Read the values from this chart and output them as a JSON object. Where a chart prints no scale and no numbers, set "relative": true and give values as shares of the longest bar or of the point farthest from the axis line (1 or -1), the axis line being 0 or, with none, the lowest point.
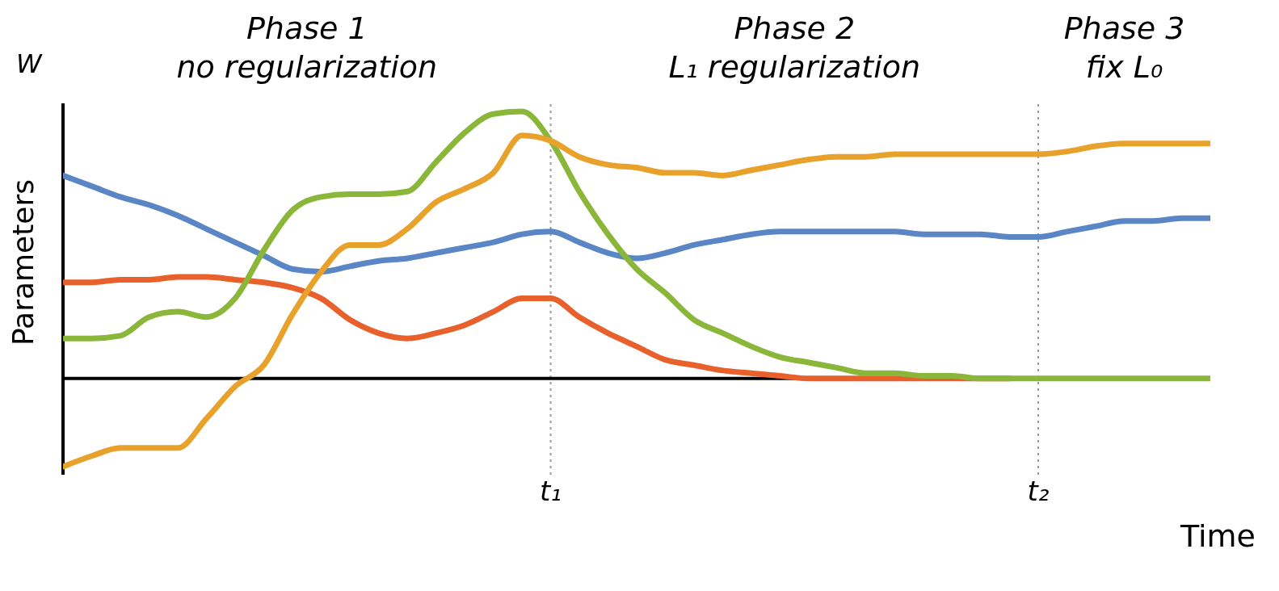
{
  "chart_data": {
    "type": "line",
    "relative": true,
    "xlabel": "Time",
    "ylabel": "Parameters",
    "annotations": [
      "W",
      "Phase 1\nno regularization",
      "Phase 2\nL₁ regularization",
      "Phase 3\nfix L₀"
    ],
    "categories": [
      null,
      null,
      null,
      null,
      null,
      null,
      null,
      null,
      null,
      null,
      null,
      null,
      null,
      null,
      null,
      null,
      null,
      "t₁",
      null,
      null,
      null,
      null,
      null,
      null,
      null,
      null,
      null,
      null,
      null,
      null,
      null,
      null,
      null,
      null,
      "t₂",
      null,
      null,
      null,
      null,
      null,
      null
    ],
    "tick_labels": "x",
    "grid": false,
    "marker": "none",
    "line_style": "solid",
    "ref_lines": [
      {
        "axis": "x",
        "value": "t₁",
        "color": "#999999",
        "line_style": "dotted"
      },
      {
        "axis": "x",
        "value": "t₂",
        "color": "#999999",
        "line_style": "dotted"
      }
    ],
    "series": [
      {
        "color": "#5b86c5",
        "values": [
          0.76,
          0.72,
          0.68,
          0.65,
          0.61,
          0.56,
          0.51,
          0.46,
          0.41,
          0.4,
          0.42,
          0.44,
          0.45,
          0.47,
          0.49,
          0.51,
          0.54,
          0.55,
          0.51,
          0.47,
          0.45,
          0.47,
          0.5,
          0.52,
          0.54,
          0.55,
          0.55,
          0.55,
          0.55,
          0.55,
          0.54,
          0.54,
          0.54,
          0.53,
          0.53,
          0.55,
          0.57,
          0.59,
          0.59,
          0.6,
          0.6
        ]
      },
      {
        "color": "#e8602c",
        "values": [
          0.36,
          0.36,
          0.37,
          0.37,
          0.38,
          0.38,
          0.37,
          0.36,
          0.34,
          0.3,
          0.22,
          0.17,
          0.15,
          0.17,
          0.2,
          0.25,
          0.3,
          0.3,
          0.23,
          0.17,
          0.12,
          0.07,
          0.05,
          0.03,
          0.02,
          0.01,
          0,
          0,
          0,
          0,
          0,
          0,
          0,
          0,
          null,
          null,
          null,
          null,
          null,
          null,
          null
        ]
      },
      {
        "color": "#8ab63a",
        "values": [
          0.15,
          0.15,
          0.16,
          0.23,
          0.25,
          0.23,
          0.3,
          0.48,
          0.63,
          0.68,
          0.69,
          0.69,
          0.7,
          0.81,
          0.92,
          0.99,
          1,
          0.89,
          0.7,
          0.54,
          0.41,
          0.32,
          0.22,
          0.17,
          0.12,
          0.08,
          0.06,
          0.04,
          0.02,
          0.02,
          0.01,
          0.01,
          0,
          0,
          0,
          0,
          0,
          0,
          0,
          0,
          0
        ]
      },
      {
        "color": "#e8a22c",
        "values": [
          -0.33,
          -0.29,
          -0.26,
          -0.26,
          -0.26,
          -0.15,
          -0.03,
          0.05,
          0.24,
          0.4,
          0.5,
          0.5,
          0.56,
          0.66,
          0.71,
          0.77,
          0.91,
          0.89,
          0.83,
          0.8,
          0.79,
          0.77,
          0.77,
          0.76,
          0.78,
          0.8,
          0.82,
          0.83,
          0.83,
          0.84,
          0.84,
          0.84,
          0.84,
          0.84,
          0.84,
          0.85,
          0.87,
          0.88,
          0.88,
          0.88,
          0.88
        ]
      }
    ]
  }
}
